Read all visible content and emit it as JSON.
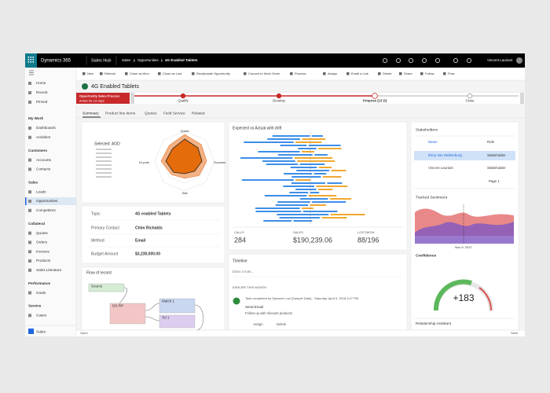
{
  "top_bar": {
    "app": "Dynamics 365",
    "area": "Sales Hub",
    "breadcrumb": [
      "Sales",
      "Opportunities",
      "4G Enabled Tablets"
    ],
    "user": "Vincent Lauriant"
  },
  "command_bar": [
    "New",
    "Refresh",
    "Close as Won",
    "Close as Lost",
    "Recalculate Opportunity",
    "Convert to Work Order",
    "Process",
    "Assign",
    "Email a Link",
    "Delete",
    "Share",
    "Follow",
    "Flow"
  ],
  "nav": {
    "top": [
      "Home",
      "Recent",
      "Pinned"
    ],
    "groups": [
      {
        "title": "My Work",
        "items": [
          "Dashboards",
          "Activities"
        ]
      },
      {
        "title": "Customers",
        "items": [
          "Accounts",
          "Contacts"
        ]
      },
      {
        "title": "Sales",
        "items": [
          "Leads",
          "Opportunities",
          "Competitors"
        ]
      },
      {
        "title": "Collateral",
        "items": [
          "Quotes",
          "Orders",
          "Invoices",
          "Products",
          "Sales Literature"
        ]
      },
      {
        "title": "Performance",
        "items": [
          "Goals"
        ]
      },
      {
        "title": "Service",
        "items": [
          "Cases"
        ]
      }
    ],
    "area": "Sales"
  },
  "record": {
    "title": "4G Enabled Tablets",
    "process": {
      "name": "Opportunity Sales Process",
      "status": "Active for 13 days",
      "stages": [
        "Qualify",
        "Develop",
        "Propose (13 D)",
        "Close"
      ]
    },
    "tabs": [
      "Summary",
      "Product line items",
      "Quotes",
      "Field Service",
      "Related"
    ]
  },
  "radar": {
    "title": "Selected: AOD",
    "axes": [
      "Quant",
      "Success",
      "Stat",
      "Dr-pole"
    ]
  },
  "fields": [
    [
      "Topic",
      "4G enabled Tablets"
    ],
    [
      "Primary Contact",
      "Chim Richalds"
    ],
    [
      "Method",
      "Email"
    ],
    [
      "Budget Amount",
      "$3,230,000.00"
    ]
  ],
  "flow": {
    "title": "Flow of record",
    "nodes": [
      "Source",
      "DS-RP",
      "Match 1",
      "Tel 1"
    ]
  },
  "drift": {
    "title": "Expected vs Actual with drift",
    "stats": [
      [
        "CALLS",
        "284"
      ],
      [
        "SALES",
        "$190,239.06"
      ],
      [
        "LOST/WON",
        "88/196"
      ]
    ]
  },
  "timeline": {
    "title": "Timeline",
    "placeholder": "Enter a note...",
    "section": "EARLIER THIS MONTH",
    "entry": {
      "header": "Task completed by Speacer Low (Sample Data) - Saturday, April 9, 2018 4:27 PM",
      "subject": "Send Email",
      "body": "Follow up with relevant products",
      "actions": [
        "Assign",
        "Delete"
      ]
    }
  },
  "stakeholders": {
    "title": "Stakeholders",
    "columns": [
      "Name",
      "Role"
    ],
    "rows": [
      [
        "Erica Van Stubenburg",
        "Stakeholder"
      ],
      [
        "Vincent Lauriant",
        "Stakeholder"
      ]
    ],
    "page": "Page 1"
  },
  "sentiment": {
    "title": "Tracked Sentiment",
    "date": "Nov 9, 2017"
  },
  "confidence": {
    "title": "Confidence",
    "value": "+183"
  },
  "relationship": "Relationship Assistant",
  "status_bar": {
    "left": "Open",
    "right": "Save"
  }
}
